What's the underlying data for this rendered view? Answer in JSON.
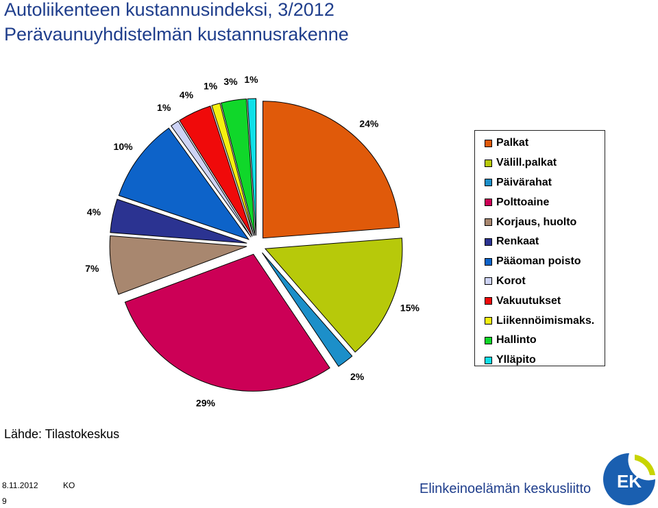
{
  "header": {
    "title": "Autoliikenteen kustannusindeksi, 3/2012",
    "subtitle": "Perävaunuyhdistelmän kustannusrakenne"
  },
  "chart_data": {
    "type": "pie",
    "title": "",
    "start_angle_deg": 0,
    "direction": "clockwise",
    "legend_position": "right",
    "slices": [
      {
        "label": "Palkat",
        "value": 24,
        "value_label": "24%",
        "color": "#e05a0a",
        "explode": 14
      },
      {
        "label": "Välill.palkat",
        "value": 15,
        "value_label": "15%",
        "color": "#b7c90a",
        "explode": 14
      },
      {
        "label": "Päivärahat",
        "value": 2,
        "value_label": "2%",
        "color": "#1c8fc9",
        "explode": 14
      },
      {
        "label": "Polttoaine",
        "value": 29,
        "value_label": "29%",
        "color": "#cc0056",
        "explode": 14
      },
      {
        "label": "Korjaus, huolto",
        "value": 7,
        "value_label": "7%",
        "color": "#a8876f",
        "explode": 14
      },
      {
        "label": "Renkaat",
        "value": 4,
        "value_label": "4%",
        "color": "#2b3391",
        "explode": 14
      },
      {
        "label": "Pääoman poisto",
        "value": 10,
        "value_label": "10%",
        "color": "#0d63c9",
        "explode": 14
      },
      {
        "label": "Korot",
        "value": 1,
        "value_label": "1%",
        "color": "#cdd3f5",
        "explode": 14
      },
      {
        "label": "Vakuutukset",
        "value": 4,
        "value_label": "4%",
        "color": "#f00a0a",
        "explode": 14
      },
      {
        "label": "Liikennöimismaks.",
        "value": 1,
        "value_label": "1%",
        "color": "#f5f010",
        "explode": 14
      },
      {
        "label": "Hallinto",
        "value": 3,
        "value_label": "3%",
        "color": "#10d72a",
        "explode": 14
      },
      {
        "label": "Ylläpito",
        "value": 1,
        "value_label": "1%",
        "color": "#10e0e8",
        "explode": 14
      }
    ]
  },
  "footer": {
    "source": "Lähde: Tilastokeskus",
    "date": "8.11.2012",
    "author": "KO",
    "page": "9",
    "organization": "Elinkeinoelämän keskusliitto",
    "logo_text": "EK"
  }
}
